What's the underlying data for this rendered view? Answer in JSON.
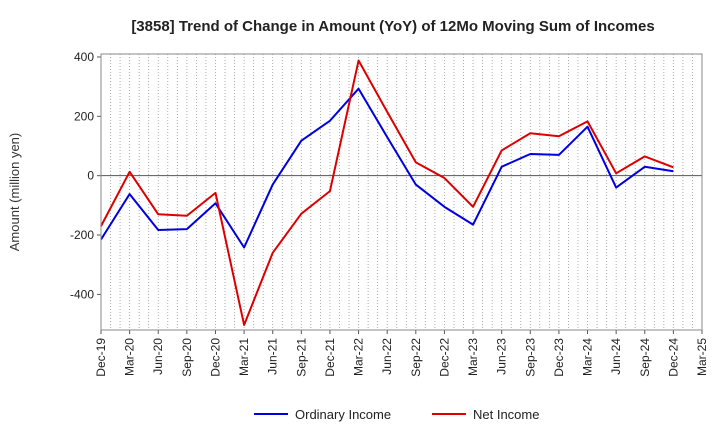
{
  "chart_data": {
    "type": "line",
    "title": "[3858]  Trend of Change in Amount (YoY) of 12Mo Moving Sum of Incomes",
    "xlabel": "",
    "ylabel": "Amount (million yen)",
    "ylim": [
      -520,
      410
    ],
    "yticks": [
      400,
      200,
      0,
      -200,
      -400
    ],
    "grid": true,
    "legend_position": "bottom",
    "categories": [
      "Dec-19",
      "Mar-20",
      "Jun-20",
      "Sep-20",
      "Dec-20",
      "Mar-21",
      "Jun-21",
      "Sep-21",
      "Dec-21",
      "Mar-22",
      "Jun-22",
      "Sep-22",
      "Dec-22",
      "Mar-23",
      "Jun-23",
      "Sep-23",
      "Dec-23",
      "Mar-24",
      "Jun-24",
      "Sep-24",
      "Dec-24",
      "Mar-25"
    ],
    "series": [
      {
        "name": "Ordinary Income",
        "color": "#0000dd",
        "values": [
          -215,
          -62,
          -183,
          -180,
          -93,
          -242,
          -30,
          118,
          185,
          293,
          130,
          -30,
          -105,
          -165,
          30,
          73,
          70,
          165,
          -40,
          30,
          15,
          null
        ]
      },
      {
        "name": "Net Income",
        "color": "#dd0000",
        "values": [
          -170,
          13,
          -130,
          -135,
          -58,
          -503,
          -260,
          -128,
          -52,
          388,
          215,
          45,
          -8,
          -105,
          85,
          143,
          133,
          183,
          8,
          65,
          28,
          null
        ]
      }
    ]
  }
}
